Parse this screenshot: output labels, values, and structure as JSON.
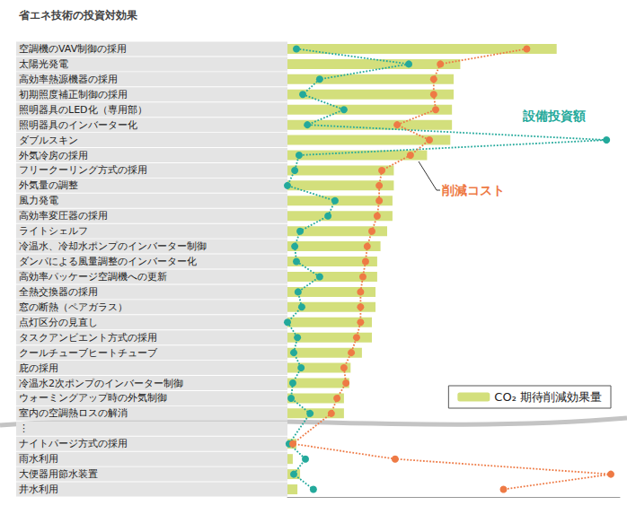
{
  "chart_data": {
    "type": "bar",
    "orientation": "horizontal",
    "title": "省エネ技術の投資対効果",
    "categories": [
      "空調機のVAV制御の採用",
      "太陽光発電",
      "高効率熱源機器の採用",
      "初期照度補正制御の採用",
      "照明器具のLED化（専用部）",
      "照明器具のインバーター化",
      "ダブルスキン",
      "外気冷房の採用",
      "フリークーリング方式の採用",
      "外気量の調整",
      "風力発電",
      "高効率変圧器の採用",
      "ライトシェルフ",
      "冷温水、冷却水ポンプのインバーター制御",
      "ダンパによる風量調整のインバーター化",
      "高効率パッケージ空調機への更新",
      "全熱交換器の採用",
      "窓の断熱（ペアガラス）",
      "点灯区分の見直し",
      "タスクアンビエント方式の採用",
      "クールチューブヒートチューブ",
      "庇の採用",
      "冷温水2次ポンプのインバーター制御",
      "ウォーミングアップ時の外気制御",
      "室内の空調熱ロスの解消",
      "⋮",
      "ナイトパージ方式の採用",
      "雨水利用",
      "大便器用節水装置",
      "井水利用"
    ],
    "series": [
      {
        "name": "CO₂ 期待削減効果量",
        "type": "bar",
        "color": "#d3df7c",
        "values": [
          81,
          52,
          50,
          50,
          49.5,
          49.5,
          49,
          42,
          32,
          32,
          31.6,
          31.6,
          30,
          28,
          27,
          27,
          26.5,
          26.5,
          25.4,
          25.4,
          22.4,
          19,
          18.6,
          17,
          17,
          null,
          2.7,
          1.6,
          3.8,
          3
        ]
      },
      {
        "name": "設備投資額",
        "type": "line",
        "color": "#23a99b",
        "line_style": "dotted",
        "marker": "circle",
        "values": [
          2.7,
          36.5,
          9.7,
          4.6,
          17,
          6,
          96,
          3.5,
          2.2,
          0,
          14.3,
          12.2,
          3.8,
          2.2,
          2.7,
          9.7,
          3.2,
          4.3,
          0,
          3,
          1.9,
          4.1,
          1.6,
          1.1,
          6.8,
          null,
          0.5,
          5.4,
          1.9,
          7.8
        ]
      },
      {
        "name": "削減コスト",
        "type": "line",
        "color": "#ee7a45",
        "line_style": "dotted",
        "marker": "circle",
        "values": [
          72,
          46,
          44,
          44,
          44.6,
          33,
          42.7,
          37,
          28.4,
          27.6,
          27.6,
          27,
          25.4,
          24,
          23.5,
          22.7,
          22,
          22,
          22,
          20.8,
          19.2,
          17,
          17.6,
          14.9,
          13.2,
          null,
          1.6,
          32.4,
          97.3,
          65
        ]
      }
    ],
    "xlim": [
      0,
      100
    ],
    "tick_labels": "y",
    "legend": "lower right",
    "grid": false
  }
}
